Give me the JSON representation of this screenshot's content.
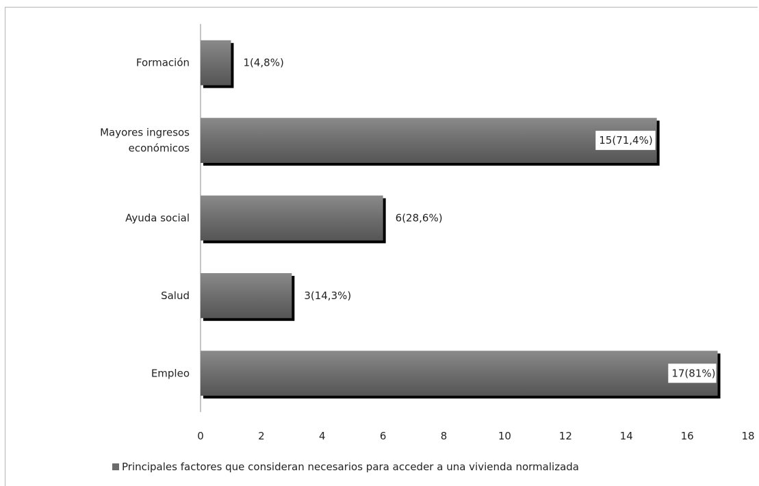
{
  "chart_data": {
    "type": "bar",
    "orientation": "horizontal",
    "categories": [
      "Formación",
      "Mayores ingresos económicos",
      "Ayuda social",
      "Salud",
      "Empleo"
    ],
    "category_lines": [
      [
        "Formación"
      ],
      [
        "Mayores ingresos",
        "económicos"
      ],
      [
        "Ayuda social"
      ],
      [
        "Salud"
      ],
      [
        "Empleo"
      ]
    ],
    "series": [
      {
        "name": "Principales factores que consideran necesarios para acceder a una vivienda normalizada",
        "values": [
          1,
          15,
          6,
          3,
          17
        ],
        "data_labels": [
          "1(4,8%)",
          "15(71,4%)",
          "6(28,6%)",
          "3(14,3%)",
          "17(81%)"
        ],
        "color": "#6b6b6b"
      }
    ],
    "xlim": [
      0,
      18
    ],
    "xticks": [
      0,
      2,
      4,
      6,
      8,
      10,
      12,
      14,
      16,
      18
    ],
    "grid": false,
    "legend_position": "bottom",
    "title": "",
    "xlabel": "",
    "ylabel": ""
  }
}
